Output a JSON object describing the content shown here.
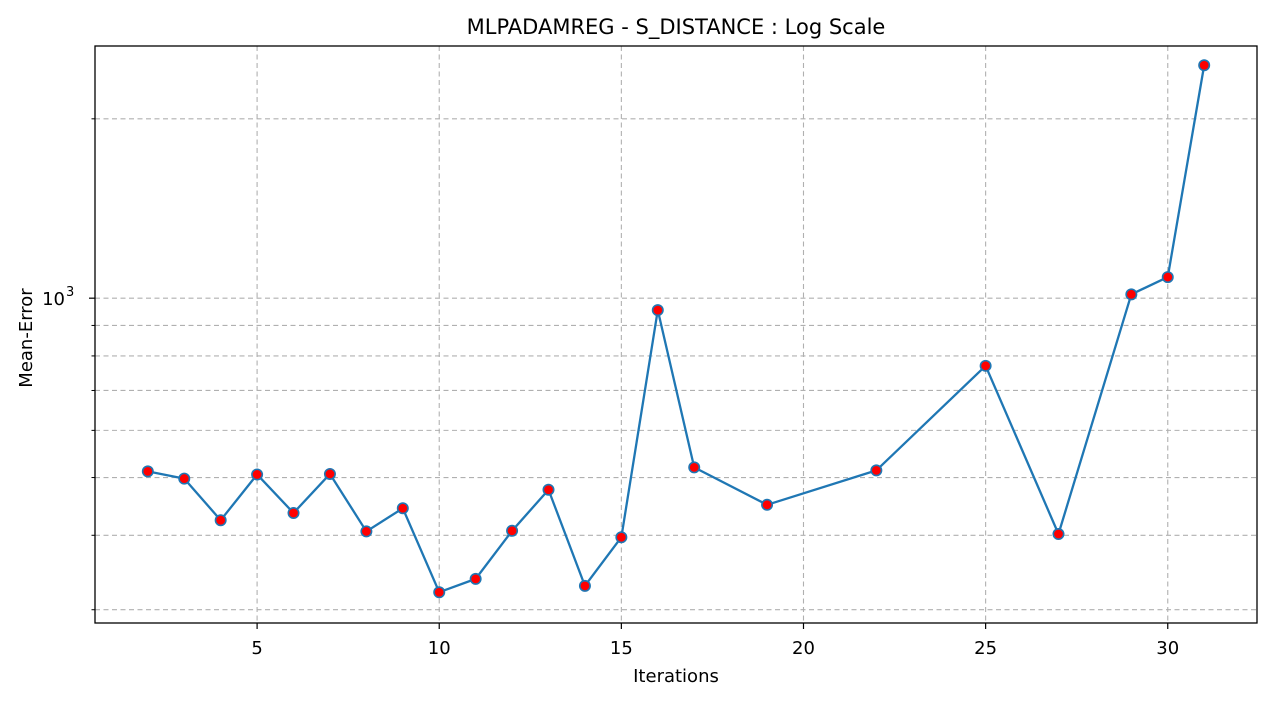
{
  "chart_data": {
    "type": "line",
    "title": "MLPADAMREG - S_DISTANCE : Log Scale",
    "xlabel": "Iterations",
    "ylabel": "Mean-Error",
    "yscale": "log",
    "grid": true,
    "xlim": [
      0.55,
      32.45
    ],
    "ylim": [
      285,
      2650
    ],
    "xticks": [
      5,
      10,
      15,
      20,
      25,
      30
    ],
    "xtick_labels": [
      "5",
      "10",
      "15",
      "20",
      "25",
      "30"
    ],
    "yticks_major": [
      1000
    ],
    "ytick_major_labels": [
      "10",
      "3"
    ],
    "yticks_minor": [
      300,
      400,
      500,
      600,
      700,
      800,
      900,
      2000
    ],
    "series": [
      {
        "line_color": "#1f77b4",
        "marker_fill": "#ff0000",
        "marker_edge": "#1f77b4",
        "x": [
          2,
          3,
          4,
          5,
          6,
          7,
          8,
          9,
          10,
          11,
          12,
          13,
          14,
          15,
          16,
          17,
          19,
          22,
          25,
          27,
          29,
          30,
          31
        ],
        "y": [
          512,
          498,
          424,
          506,
          436,
          507,
          406,
          444,
          321,
          338,
          407,
          477,
          329,
          397,
          955,
          520,
          450,
          514,
          770,
          402,
          1015,
          1085,
          2460
        ]
      }
    ]
  }
}
